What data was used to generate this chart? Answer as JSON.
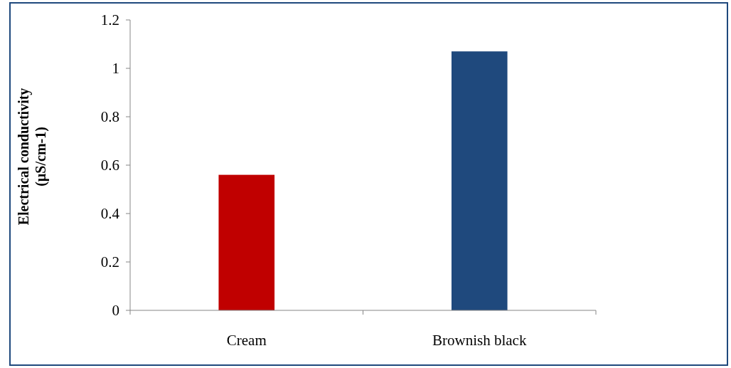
{
  "chart_data": {
    "type": "bar",
    "ylabel": "Electrical conductivity\n(µS/cm-1)",
    "categories": [
      "Cream",
      "Brownish black"
    ],
    "values": [
      0.56,
      1.07
    ],
    "colors": [
      "#c00000",
      "#1f497d"
    ],
    "ylim": [
      0,
      1.2
    ],
    "yticks": [
      0,
      0.2,
      0.4,
      0.6,
      0.8,
      1,
      1.2
    ],
    "grid": false
  }
}
